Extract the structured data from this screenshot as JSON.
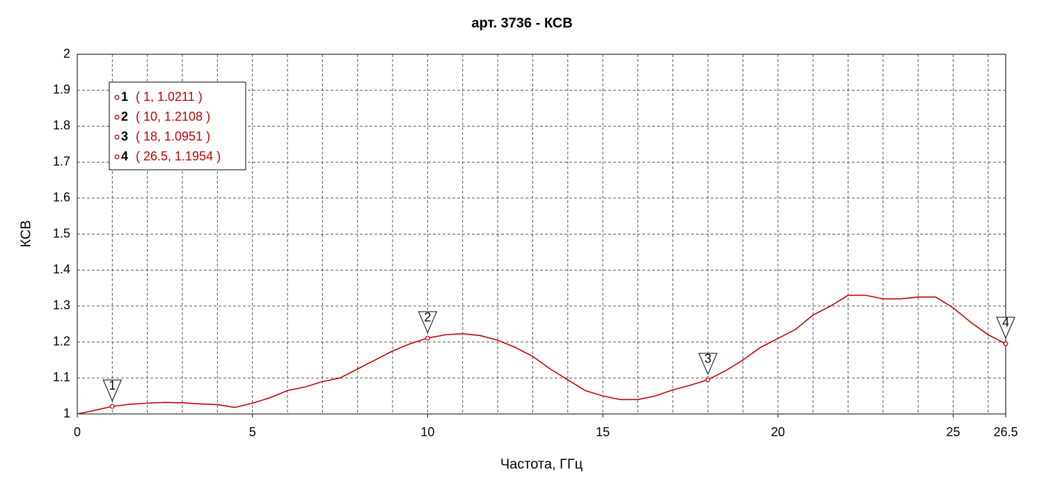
{
  "chart_data": {
    "type": "line",
    "title": "арт. 3736 - КСВ",
    "xlabel": "Частота, ГГц",
    "ylabel": "КСВ",
    "x": [
      0,
      0.5,
      1,
      1.5,
      2,
      2.5,
      3,
      3.5,
      4,
      4.5,
      5,
      5.5,
      6,
      6.5,
      7,
      7.5,
      8,
      8.5,
      9,
      9.5,
      10,
      10.5,
      11,
      11.5,
      12,
      12.5,
      13,
      13.5,
      14,
      14.5,
      15,
      15.5,
      16,
      16.5,
      17,
      17.5,
      18,
      18.5,
      19,
      19.5,
      20,
      20.5,
      21,
      21.5,
      22,
      22.5,
      23,
      23.5,
      24,
      24.5,
      25,
      25.5,
      26,
      26.5
    ],
    "series": [
      {
        "name": "КСВ",
        "color": "#c00000",
        "values": [
          1.0,
          1.01,
          1.021,
          1.027,
          1.03,
          1.032,
          1.031,
          1.028,
          1.026,
          1.018,
          1.03,
          1.045,
          1.065,
          1.075,
          1.09,
          1.1,
          1.125,
          1.15,
          1.175,
          1.195,
          1.211,
          1.22,
          1.223,
          1.218,
          1.205,
          1.185,
          1.16,
          1.125,
          1.095,
          1.065,
          1.05,
          1.04,
          1.04,
          1.05,
          1.067,
          1.08,
          1.095,
          1.12,
          1.15,
          1.185,
          1.21,
          1.235,
          1.275,
          1.3,
          1.33,
          1.33,
          1.32,
          1.32,
          1.325,
          1.325,
          1.295,
          1.255,
          1.22,
          1.195
        ]
      }
    ],
    "markers": [
      {
        "label": "1",
        "x": 1,
        "y": 1.0211,
        "text": "( 1, 1.0211 )"
      },
      {
        "label": "2",
        "x": 10,
        "y": 1.2108,
        "text": "( 10, 1.2108 )"
      },
      {
        "label": "3",
        "x": 18,
        "y": 1.0951,
        "text": "( 18, 1.0951 )"
      },
      {
        "label": "4",
        "x": 26.5,
        "y": 1.1954,
        "text": "( 26.5, 1.1954 )"
      }
    ],
    "xlim": [
      0,
      26.5
    ],
    "ylim": [
      1,
      2
    ],
    "xticks": [
      0,
      5,
      10,
      15,
      20,
      25,
      26.5
    ],
    "yticks": [
      1,
      1.1,
      1.2,
      1.3,
      1.4,
      1.5,
      1.6,
      1.7,
      1.8,
      1.9,
      2
    ],
    "xgrid": [
      1,
      2,
      3,
      4,
      5,
      6,
      7,
      8,
      9,
      10,
      11,
      12,
      13,
      14,
      15,
      16,
      17,
      18,
      19,
      20,
      21,
      22,
      23,
      24,
      25,
      26
    ],
    "grid": true
  }
}
